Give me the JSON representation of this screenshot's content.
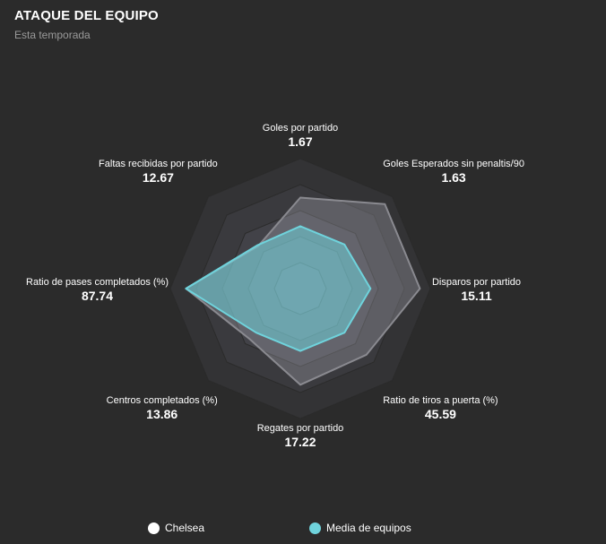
{
  "header": {
    "title": "ATAQUE DEL EQUIPO",
    "subtitle": "Esta temporada"
  },
  "colors": {
    "background": "#2b2b2b",
    "team": "#ffffff",
    "average": "#6fd3dc"
  },
  "chart_data": {
    "type": "radar",
    "title": "ATAQUE DEL EQUIPO",
    "subtitle": "Esta temporada",
    "rings": 5,
    "axes": [
      {
        "label": "Goles por partido",
        "value": "1.67"
      },
      {
        "label": "Goles Esperados sin penaltis/90",
        "value": "1.63"
      },
      {
        "label": "Disparos por partido",
        "value": "15.11"
      },
      {
        "label": "Ratio de tiros a puerta (%)",
        "value": "45.59"
      },
      {
        "label": "Regates por partido",
        "value": "17.22"
      },
      {
        "label": "Centros completados (%)",
        "value": "13.86"
      },
      {
        "label": "Ratio de pases completados (%)",
        "value": "87.74"
      },
      {
        "label": "Faltas recibidas por partido",
        "value": "12.67"
      }
    ],
    "series": [
      {
        "name": "Chelsea",
        "color": "#ffffff",
        "normalized": [
          0.7,
          0.92,
          0.92,
          0.72,
          0.74,
          0.55,
          0.88,
          0.46
        ]
      },
      {
        "name": "Media de equipos",
        "color": "#6fd3dc",
        "normalized": [
          0.48,
          0.48,
          0.54,
          0.48,
          0.48,
          0.48,
          0.88,
          0.47
        ]
      }
    ],
    "legend": [
      "Chelsea",
      "Media de equipos"
    ],
    "legend_position": "bottom"
  }
}
